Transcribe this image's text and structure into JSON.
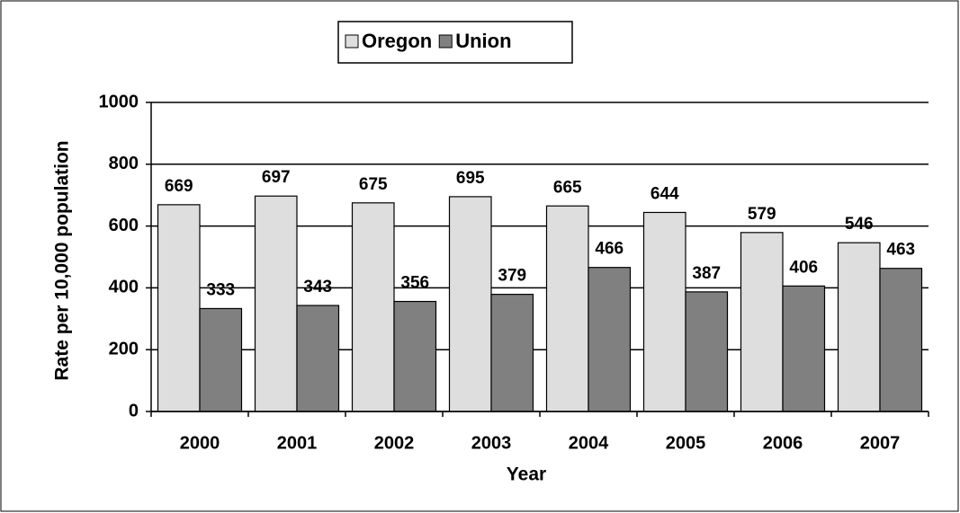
{
  "chart_data": {
    "type": "bar",
    "categories": [
      "2000",
      "2001",
      "2002",
      "2003",
      "2004",
      "2005",
      "2006",
      "2007"
    ],
    "series": [
      {
        "name": "Oregon",
        "color": "#dedede",
        "values": [
          669,
          697,
          675,
          695,
          665,
          644,
          579,
          546
        ]
      },
      {
        "name": "Union",
        "color": "#808080",
        "values": [
          333,
          343,
          356,
          379,
          466,
          387,
          406,
          463
        ]
      }
    ],
    "x_label": "Year",
    "y_label": "Rate per 10,000 population",
    "ylim": [
      0,
      1000
    ],
    "yticks": [
      0,
      200,
      400,
      600,
      800,
      1000
    ],
    "grid": true,
    "legend": "top"
  }
}
